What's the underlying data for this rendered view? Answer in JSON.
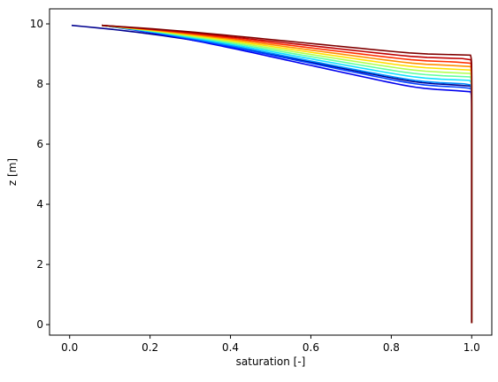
{
  "chart_data": {
    "type": "line",
    "title": "",
    "xlabel": "saturation [-]",
    "ylabel": "z [m]",
    "xlim": [
      -0.05,
      1.05
    ],
    "ylim": [
      -0.35,
      10.5
    ],
    "xticks": [
      0.0,
      0.2,
      0.4,
      0.6,
      0.8,
      1.0
    ],
    "xtick_labels": [
      "0.0",
      "0.2",
      "0.4",
      "0.6",
      "0.8",
      "1.0"
    ],
    "yticks": [
      0,
      2,
      4,
      6,
      8,
      10
    ],
    "ytick_labels": [
      "0",
      "2",
      "4",
      "6",
      "8",
      "10"
    ],
    "grid": false,
    "legend": "none",
    "colormap": "jet",
    "z_bottom": 0.05,
    "z_top": 9.95,
    "series": [
      {
        "color": "#00008f",
        "z_front": 7.95,
        "s_top": 0.005
      },
      {
        "color": "#0000ee",
        "z_front": 7.76,
        "s_top": 0.08
      },
      {
        "color": "#0040ff",
        "z_front": 7.88,
        "s_top": 0.08
      },
      {
        "color": "#0090ff",
        "z_front": 8.0,
        "s_top": 0.08
      },
      {
        "color": "#10e0ff",
        "z_front": 8.12,
        "s_top": 0.08
      },
      {
        "color": "#60ffa0",
        "z_front": 8.24,
        "s_top": 0.08
      },
      {
        "color": "#b0ff50",
        "z_front": 8.36,
        "s_top": 0.08
      },
      {
        "color": "#ffe000",
        "z_front": 8.48,
        "s_top": 0.08
      },
      {
        "color": "#ff9000",
        "z_front": 8.6,
        "s_top": 0.08
      },
      {
        "color": "#ff3000",
        "z_front": 8.72,
        "s_top": 0.08
      },
      {
        "color": "#c00000",
        "z_front": 8.84,
        "s_top": 0.08
      },
      {
        "color": "#800000",
        "z_front": 8.96,
        "s_top": 0.08
      }
    ]
  }
}
